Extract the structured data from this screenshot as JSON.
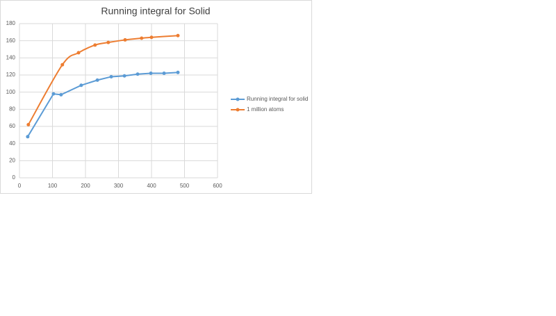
{
  "chart_data": {
    "type": "line",
    "title": "Running integral for Solid",
    "series": [
      {
        "name": "Running integral for solid",
        "color": "#5b9bd5",
        "smooth": false,
        "x": [
          25,
          103,
          126,
          187,
          236,
          278,
          318,
          358,
          398,
          438,
          480
        ],
        "values": [
          48,
          98,
          97,
          108,
          114,
          118,
          119,
          121,
          122,
          122,
          123
        ]
      },
      {
        "name": "1 million atoms",
        "color": "#ed7d31",
        "smooth": true,
        "x": [
          27,
          130,
          179,
          229,
          269,
          320,
          370,
          400,
          480
        ],
        "values": [
          62,
          132,
          146,
          155,
          158,
          161,
          163,
          164,
          166
        ]
      }
    ],
    "xlim": [
      0,
      600
    ],
    "xticks": [
      0,
      100,
      200,
      300,
      400,
      500,
      600
    ],
    "ylim": [
      0,
      180
    ],
    "yticks": [
      0,
      20,
      40,
      60,
      80,
      100,
      120,
      140,
      160,
      180
    ],
    "grid": true,
    "legend": "right"
  }
}
